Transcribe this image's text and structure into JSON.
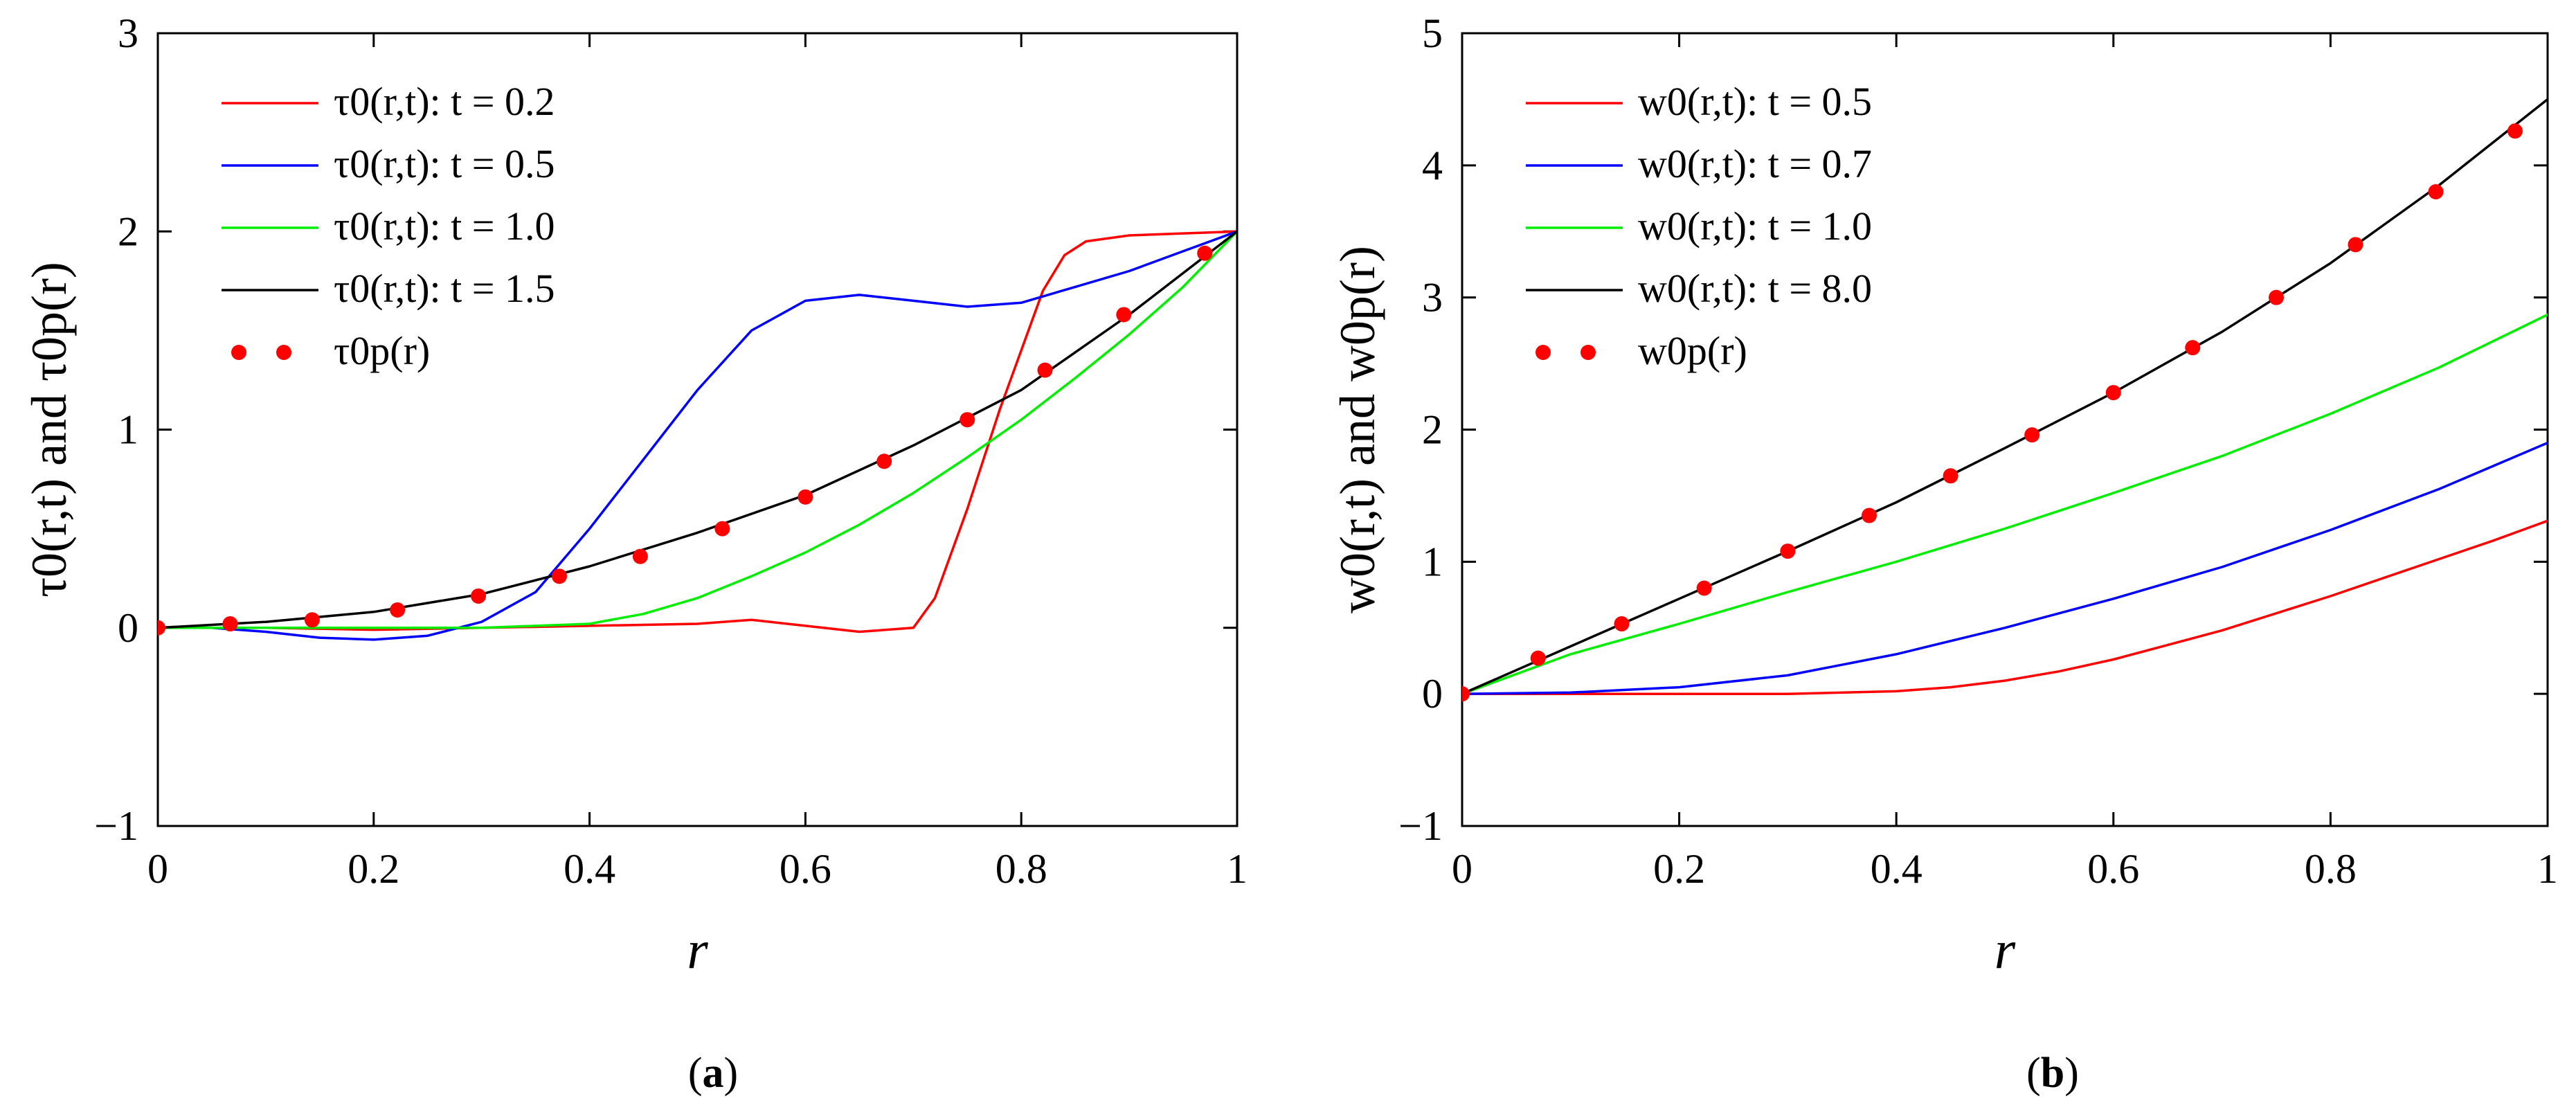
{
  "chart_data": [
    {
      "panel_caption": "(a)",
      "caption_letter": "a",
      "type": "line",
      "xlabel": "r",
      "ylabel": "τ0(r,t) and τ0p(r)",
      "xlim": [
        0,
        1
      ],
      "ylim": [
        -1,
        3
      ],
      "x_ticks": [
        "0",
        "0.2",
        "0.4",
        "0.6",
        "0.8",
        "1"
      ],
      "y_ticks": [
        "−1",
        "0",
        "1",
        "2",
        "3"
      ],
      "grid": false,
      "legend_placement": "top-left",
      "series": [
        {
          "name": "τ0(r,t): t = 0.2",
          "color": "#ff0000",
          "style": "line",
          "x": [
            0,
            0.1,
            0.2,
            0.3,
            0.4,
            0.5,
            0.55,
            0.6,
            0.65,
            0.7,
            0.72,
            0.75,
            0.78,
            0.8,
            0.82,
            0.84,
            0.86,
            0.9,
            0.95,
            1.0
          ],
          "y": [
            0,
            0,
            -0.01,
            0,
            0.01,
            0.02,
            0.04,
            0.01,
            -0.02,
            0,
            0.15,
            0.6,
            1.1,
            1.4,
            1.7,
            1.88,
            1.95,
            1.98,
            1.99,
            2.0
          ]
        },
        {
          "name": "τ0(r,t): t = 0.5",
          "color": "#0000ff",
          "style": "line",
          "x": [
            0,
            0.05,
            0.1,
            0.15,
            0.2,
            0.25,
            0.3,
            0.35,
            0.4,
            0.45,
            0.5,
            0.55,
            0.6,
            0.65,
            0.7,
            0.75,
            0.8,
            0.85,
            0.9,
            0.95,
            1.0
          ],
          "y": [
            0,
            0,
            -0.02,
            -0.05,
            -0.06,
            -0.04,
            0.03,
            0.18,
            0.5,
            0.85,
            1.2,
            1.5,
            1.65,
            1.68,
            1.65,
            1.62,
            1.64,
            1.72,
            1.8,
            1.9,
            2.0
          ]
        },
        {
          "name": "τ0(r,t): t = 1.0",
          "color": "#00ee00",
          "style": "line",
          "x": [
            0,
            0.1,
            0.2,
            0.3,
            0.4,
            0.45,
            0.5,
            0.55,
            0.6,
            0.65,
            0.7,
            0.75,
            0.8,
            0.85,
            0.9,
            0.95,
            1.0
          ],
          "y": [
            0,
            0,
            0,
            0,
            0.02,
            0.07,
            0.15,
            0.26,
            0.38,
            0.52,
            0.68,
            0.86,
            1.05,
            1.26,
            1.48,
            1.72,
            2.0
          ]
        },
        {
          "name": "τ0(r,t): t = 1.5",
          "color": "#000000",
          "style": "line",
          "x": [
            0,
            0.1,
            0.2,
            0.3,
            0.4,
            0.5,
            0.6,
            0.7,
            0.8,
            0.9,
            1.0
          ],
          "y": [
            0,
            0.03,
            0.08,
            0.17,
            0.31,
            0.48,
            0.67,
            0.92,
            1.2,
            1.58,
            2.0
          ]
        },
        {
          "name": "τ0p(r)",
          "color": "#ff0000",
          "style": "dots",
          "x": [
            0,
            0.067,
            0.143,
            0.222,
            0.297,
            0.372,
            0.447,
            0.523,
            0.6,
            0.673,
            0.75,
            0.822,
            0.895,
            0.97
          ],
          "y": [
            0,
            0.02,
            0.04,
            0.09,
            0.16,
            0.26,
            0.36,
            0.5,
            0.66,
            0.84,
            1.05,
            1.3,
            1.58,
            1.89
          ]
        }
      ]
    },
    {
      "panel_caption": "(b)",
      "caption_letter": "b",
      "type": "line",
      "xlabel": "r",
      "ylabel": "w0(r,t) and w0p(r)",
      "xlim": [
        0,
        1
      ],
      "ylim": [
        -1,
        5
      ],
      "x_ticks": [
        "0",
        "0.2",
        "0.4",
        "0.6",
        "0.8",
        "1"
      ],
      "y_ticks": [
        "−1",
        "0",
        "1",
        "2",
        "3",
        "4",
        "5"
      ],
      "grid": false,
      "legend_placement": "top-left",
      "series": [
        {
          "name": "w0(r,t): t = 0.5",
          "color": "#ff0000",
          "style": "line",
          "x": [
            0,
            0.1,
            0.2,
            0.3,
            0.4,
            0.45,
            0.5,
            0.55,
            0.6,
            0.65,
            0.7,
            0.75,
            0.8,
            0.85,
            0.9,
            0.95,
            1.0
          ],
          "y": [
            0,
            0,
            0,
            0,
            0.02,
            0.05,
            0.1,
            0.17,
            0.26,
            0.37,
            0.48,
            0.61,
            0.74,
            0.88,
            1.02,
            1.16,
            1.31
          ]
        },
        {
          "name": "w0(r,t): t = 0.7",
          "color": "#0000ff",
          "style": "line",
          "x": [
            0,
            0.1,
            0.2,
            0.3,
            0.4,
            0.5,
            0.6,
            0.7,
            0.8,
            0.9,
            1.0
          ],
          "y": [
            0,
            0.01,
            0.05,
            0.14,
            0.3,
            0.5,
            0.72,
            0.96,
            1.24,
            1.55,
            1.9
          ]
        },
        {
          "name": "w0(r,t): t = 1.0",
          "color": "#00ee00",
          "style": "line",
          "x": [
            0,
            0.1,
            0.2,
            0.3,
            0.4,
            0.5,
            0.6,
            0.7,
            0.8,
            0.9,
            1.0
          ],
          "y": [
            0,
            0.3,
            0.53,
            0.77,
            1.0,
            1.25,
            1.52,
            1.8,
            2.12,
            2.47,
            2.87
          ]
        },
        {
          "name": "w0(r,t): t = 8.0",
          "color": "#000000",
          "style": "line",
          "x": [
            0,
            0.1,
            0.2,
            0.3,
            0.4,
            0.5,
            0.6,
            0.7,
            0.8,
            0.9,
            1.0
          ],
          "y": [
            0,
            0.36,
            0.72,
            1.08,
            1.45,
            1.86,
            2.28,
            2.74,
            3.26,
            3.85,
            4.5
          ]
        },
        {
          "name": "w0p(r)",
          "color": "#ff0000",
          "style": "dots",
          "x": [
            0,
            0.07,
            0.147,
            0.223,
            0.3,
            0.375,
            0.45,
            0.525,
            0.6,
            0.673,
            0.75,
            0.823,
            0.897,
            0.97
          ],
          "y": [
            0,
            0.27,
            0.53,
            0.8,
            1.08,
            1.35,
            1.65,
            1.96,
            2.28,
            2.62,
            3.0,
            3.4,
            3.8,
            4.26
          ]
        }
      ]
    }
  ]
}
